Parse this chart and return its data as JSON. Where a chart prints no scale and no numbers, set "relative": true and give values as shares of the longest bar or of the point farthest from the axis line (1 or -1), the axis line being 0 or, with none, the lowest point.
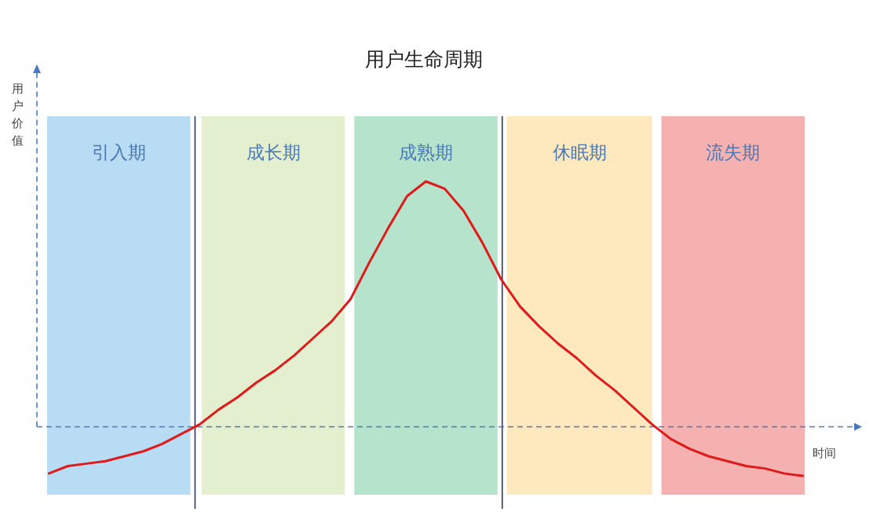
{
  "chart_data": {
    "type": "line",
    "title": "用户生命周期",
    "xlabel": "时间",
    "ylabel": "用户价值",
    "relative": true,
    "categories": [
      null,
      null,
      null,
      null,
      null,
      null,
      null,
      null,
      null,
      null,
      null,
      null,
      null,
      null,
      null,
      null,
      null,
      null,
      null,
      null,
      null,
      null,
      null,
      null,
      null,
      null,
      null,
      null,
      null,
      null,
      null,
      null,
      null,
      null,
      null,
      null,
      null,
      null,
      null,
      null,
      null
    ],
    "series": [
      {
        "color": "#e01a1a",
        "values": [
          -0.19,
          -0.16,
          -0.15,
          -0.14,
          -0.12,
          -0.1,
          -0.07,
          -0.03,
          0.01,
          0.07,
          0.12,
          0.18,
          0.23,
          0.29,
          0.36,
          0.43,
          0.52,
          0.67,
          0.81,
          0.94,
          1,
          0.97,
          0.88,
          0.75,
          0.6,
          0.49,
          0.41,
          0.34,
          0.28,
          0.21,
          0.15,
          0.08,
          0.01,
          -0.05,
          -0.09,
          -0.12,
          -0.14,
          -0.16,
          -0.17,
          -0.19,
          -0.2
        ]
      }
    ],
    "annotations": [
      "引入期",
      "成长期",
      "成熟期",
      "休眠期",
      "流失期"
    ],
    "ref_lines": [
      {
        "axis": "y",
        "value": 0,
        "color": "#4a78c0",
        "line_style": "dashed"
      }
    ]
  }
}
